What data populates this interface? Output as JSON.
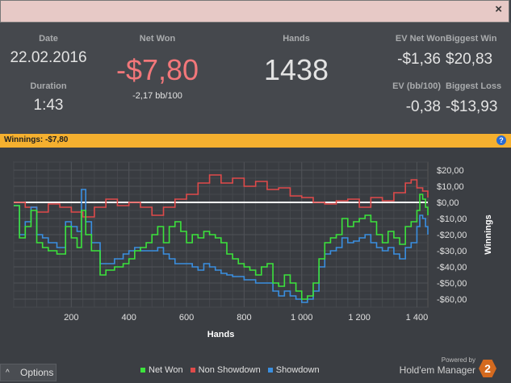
{
  "window": {
    "close_label": "×"
  },
  "stats": {
    "date": {
      "label": "Date",
      "value": "22.02.2016"
    },
    "duration": {
      "label": "Duration",
      "value": "1:43"
    },
    "net_won": {
      "label": "Net Won",
      "value": "-$7,80",
      "sub": "-2,17 bb/100"
    },
    "hands": {
      "label": "Hands",
      "value": "1438"
    },
    "ev_net_won": {
      "label": "EV Net Won",
      "value": "-$1,36"
    },
    "ev_bb": {
      "label": "EV (bb/100)",
      "value": "-0,38"
    },
    "biggest_win": {
      "label": "Biggest Win",
      "value": "$20,83"
    },
    "biggest_loss": {
      "label": "Biggest Loss",
      "value": "-$13,93"
    }
  },
  "banner": {
    "text": "Winnings: -$7,80",
    "help_label": "?"
  },
  "chart_data": {
    "type": "line",
    "xlabel": "Hands",
    "ylabel": "Winnings",
    "xlim": [
      0,
      1438
    ],
    "ylim": [
      -65,
      25
    ],
    "x_ticks": [
      200,
      400,
      600,
      800,
      1000,
      1200,
      1400
    ],
    "x_tick_labels": [
      "200",
      "400",
      "600",
      "800",
      "1 000",
      "1 200",
      "1 400"
    ],
    "y_ticks": [
      20,
      10,
      0,
      -10,
      -20,
      -30,
      -40,
      -50,
      -60
    ],
    "y_tick_labels": [
      "$20,00",
      "$10,00",
      "$0,00",
      "-$10,00",
      "-$20,00",
      "-$30,00",
      "-$40,00",
      "-$50,00",
      "-$60,00"
    ],
    "grid": true,
    "series": [
      {
        "name": "Net Won",
        "color": "#3ce33c",
        "x": [
          0,
          20,
          40,
          60,
          80,
          100,
          120,
          150,
          180,
          200,
          220,
          235,
          250,
          270,
          300,
          320,
          350,
          380,
          400,
          420,
          440,
          460,
          480,
          500,
          520,
          540,
          560,
          580,
          600,
          620,
          640,
          660,
          680,
          700,
          720,
          740,
          760,
          780,
          800,
          820,
          840,
          860,
          880,
          900,
          920,
          940,
          960,
          980,
          1000,
          1020,
          1040,
          1060,
          1080,
          1100,
          1120,
          1140,
          1160,
          1180,
          1200,
          1220,
          1240,
          1260,
          1280,
          1300,
          1320,
          1340,
          1360,
          1380,
          1400,
          1410,
          1420,
          1430,
          1438
        ],
        "y": [
          -2,
          -22,
          -15,
          -5,
          -25,
          -28,
          -30,
          -32,
          -15,
          -22,
          -28,
          -5,
          -20,
          -30,
          -45,
          -42,
          -40,
          -38,
          -35,
          -30,
          -28,
          -25,
          -20,
          -15,
          -25,
          -15,
          -12,
          -18,
          -25,
          -20,
          -22,
          -18,
          -20,
          -22,
          -25,
          -32,
          -35,
          -38,
          -40,
          -42,
          -45,
          -40,
          -38,
          -50,
          -52,
          -45,
          -50,
          -55,
          -60,
          -58,
          -50,
          -35,
          -25,
          -22,
          -20,
          -10,
          -15,
          -12,
          -10,
          -8,
          -12,
          -20,
          -25,
          -18,
          -22,
          -26,
          -15,
          -12,
          -5,
          5,
          2,
          -3,
          -8
        ]
      },
      {
        "name": "Non Showdown",
        "color": "#e04a4a",
        "x": [
          0,
          40,
          80,
          120,
          160,
          200,
          240,
          280,
          320,
          360,
          400,
          440,
          480,
          520,
          560,
          600,
          640,
          680,
          720,
          760,
          800,
          840,
          880,
          920,
          960,
          1000,
          1040,
          1080,
          1120,
          1160,
          1200,
          1240,
          1280,
          1320,
          1360,
          1380,
          1400,
          1420,
          1438
        ],
        "y": [
          0,
          -3,
          -6,
          -1,
          -3,
          -6,
          -9,
          -3,
          2,
          -2,
          0,
          -3,
          -8,
          -3,
          2,
          5,
          12,
          17,
          12,
          15,
          10,
          13,
          8,
          9,
          4,
          3,
          0,
          -1,
          1,
          2,
          -3,
          3,
          1,
          6,
          12,
          14,
          9,
          7,
          3
        ]
      },
      {
        "name": "Showdown",
        "color": "#3a8fe0",
        "x": [
          0,
          20,
          40,
          60,
          80,
          100,
          120,
          150,
          180,
          200,
          220,
          235,
          250,
          270,
          300,
          320,
          350,
          380,
          400,
          420,
          440,
          460,
          480,
          500,
          520,
          540,
          560,
          580,
          600,
          620,
          640,
          660,
          680,
          700,
          720,
          740,
          760,
          780,
          800,
          820,
          840,
          860,
          880,
          900,
          920,
          940,
          960,
          980,
          1000,
          1020,
          1040,
          1060,
          1080,
          1100,
          1120,
          1140,
          1160,
          1180,
          1200,
          1220,
          1240,
          1260,
          1280,
          1300,
          1320,
          1340,
          1360,
          1380,
          1400,
          1410,
          1420,
          1430,
          1438
        ],
        "y": [
          -2,
          -20,
          -12,
          -3,
          -20,
          -22,
          -25,
          -28,
          -12,
          -15,
          -18,
          8,
          -12,
          -25,
          -38,
          -38,
          -35,
          -32,
          -30,
          -28,
          -30,
          -30,
          -30,
          -28,
          -32,
          -35,
          -38,
          -38,
          -38,
          -40,
          -42,
          -38,
          -40,
          -42,
          -44,
          -45,
          -46,
          -46,
          -48,
          -48,
          -50,
          -50,
          -50,
          -55,
          -58,
          -55,
          -58,
          -60,
          -62,
          -60,
          -55,
          -40,
          -32,
          -30,
          -28,
          -22,
          -25,
          -24,
          -22,
          -20,
          -25,
          -28,
          -30,
          -28,
          -32,
          -35,
          -28,
          -25,
          -15,
          -8,
          -10,
          -15,
          -20
        ]
      }
    ]
  },
  "footer": {
    "options_label": "Options",
    "options_icon": "^",
    "legend": [
      "Net Won",
      "Non Showdown",
      "Showdown"
    ],
    "powered_by": "Powered by",
    "brand": "Hold'em Manager",
    "brand_logo": "2"
  }
}
